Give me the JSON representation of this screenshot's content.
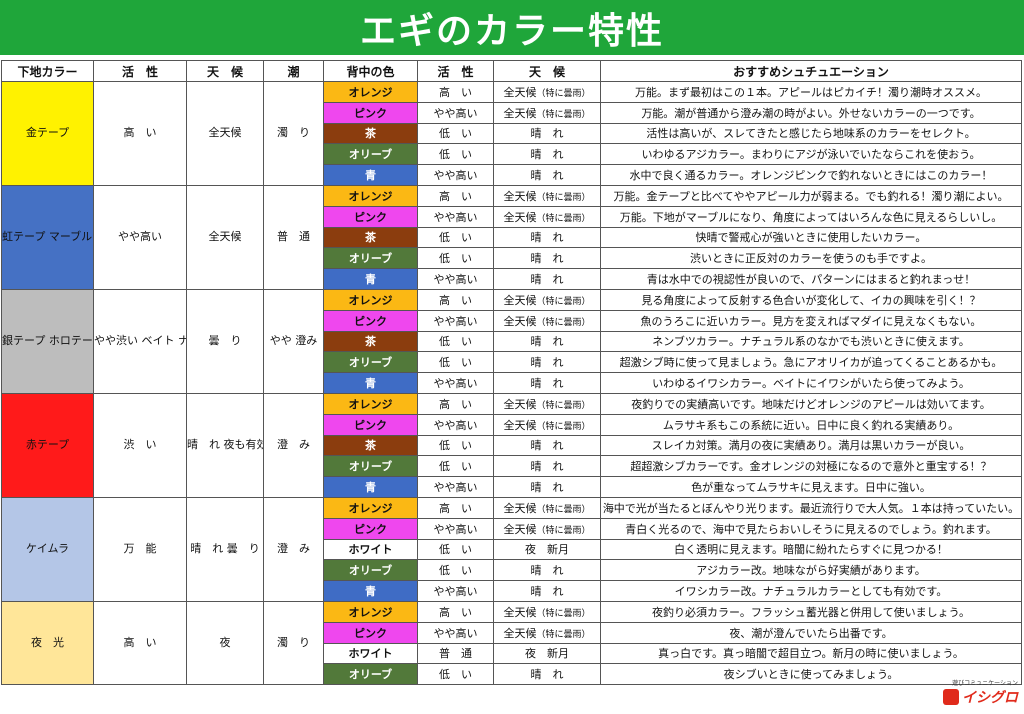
{
  "title": "エギのカラー特性",
  "headers": [
    "下地カラー",
    "活　性",
    "天　候",
    "潮",
    "背中の色",
    "活　性",
    "天　候",
    "おすすめシュチュエーション"
  ],
  "colors": {
    "gold": "#fff200",
    "rainbow": "#4571c4",
    "silver": "#bdbdbd",
    "red": "#ff1a1a",
    "keimura": "#b4c6e7",
    "luminous": "#ffe699",
    "orange": "#fbb814",
    "pink": "#ef47ee",
    "brown": "#8b3d0e",
    "olive": "#52793a",
    "blue": "#3f6cc5",
    "white": "#ffffff"
  },
  "groups": [
    {
      "base": "金テープ",
      "activity": "高　い",
      "weather": "全天候",
      "tide": "濁　り",
      "rows": [
        {
          "color": "オレンジ",
          "activity": "高　い",
          "weather_main": "全天候",
          "weather_sub": "（特に曇雨）",
          "note": "万能。まず最初はこの１本。アピールはピカイチ！濁り潮時オススメ。"
        },
        {
          "color": "ピンク",
          "activity": "やや高い",
          "weather_main": "全天候",
          "weather_sub": "（特に曇雨）",
          "note": "万能。潮が普通から澄み潮の時がよい。外せないカラーの一つです。"
        },
        {
          "color": "茶",
          "activity": "低　い",
          "weather_main": "晴　れ",
          "weather_sub": "",
          "note": "活性は高いが、スレてきたと感じたら地味系のカラーをセレクト。"
        },
        {
          "color": "オリーブ",
          "activity": "低　い",
          "weather_main": "晴　れ",
          "weather_sub": "",
          "note": "いわゆるアジカラー。まわりにアジが泳いでいたならこれを使おう。"
        },
        {
          "color": "青",
          "activity": "やや高い",
          "weather_main": "晴　れ",
          "weather_sub": "",
          "note": "水中で良く通るカラー。オレンジピンクで釣れないときにはこのカラー！"
        }
      ]
    },
    {
      "base": "虹テープ マーブル レインボー",
      "activity": "やや高い",
      "weather": "全天候",
      "tide": "普　通",
      "rows": [
        {
          "color": "オレンジ",
          "activity": "高　い",
          "weather_main": "全天候",
          "weather_sub": "（特に曇雨）",
          "note": "万能。金テープと比べてややアピール力が弱まる。でも釣れる！濁り潮によい。"
        },
        {
          "color": "ピンク",
          "activity": "やや高い",
          "weather_main": "全天候",
          "weather_sub": "（特に曇雨）",
          "note": "万能。下地がマーブルになり、角度によってはいろんな色に見えるらしいし。"
        },
        {
          "color": "茶",
          "activity": "低　い",
          "weather_main": "晴　れ",
          "weather_sub": "",
          "note": "快晴で警戒心が強いときに使用したいカラー。"
        },
        {
          "color": "オリーブ",
          "activity": "低　い",
          "weather_main": "晴　れ",
          "weather_sub": "",
          "note": "渋いときに正反対のカラーを使うのも手ですよ。"
        },
        {
          "color": "青",
          "activity": "やや高い",
          "weather_main": "晴　れ",
          "weather_sub": "",
          "note": "青は水中での視認性が良いので、パターンにはまると釣れまっせ！"
        }
      ]
    },
    {
      "base": "銀テープ ホロテープ",
      "activity": "やや渋い ベイト ナチュラル",
      "weather": "曇　り",
      "tide": "やや 澄み",
      "rows": [
        {
          "color": "オレンジ",
          "activity": "高　い",
          "weather_main": "全天候",
          "weather_sub": "（特に曇雨）",
          "note": "見る角度によって反射する色合いが変化して、イカの興味を引く！？"
        },
        {
          "color": "ピンク",
          "activity": "やや高い",
          "weather_main": "全天候",
          "weather_sub": "（特に曇雨）",
          "note": "魚のうろこに近いカラー。見方を変えればマダイに見えなくもない。"
        },
        {
          "color": "茶",
          "activity": "低　い",
          "weather_main": "晴　れ",
          "weather_sub": "",
          "note": "ネンブツカラー。ナチュラル系のなかでも渋いときに使えます。"
        },
        {
          "color": "オリーブ",
          "activity": "低　い",
          "weather_main": "晴　れ",
          "weather_sub": "",
          "note": "超激シブ時に使って見ましょう。急にアオリイカが追ってくることあるかも。"
        },
        {
          "color": "青",
          "activity": "やや高い",
          "weather_main": "晴　れ",
          "weather_sub": "",
          "note": "いわゆるイワシカラー。ベイトにイワシがいたら使ってみよう。"
        }
      ]
    },
    {
      "base": "赤テープ",
      "activity": "渋　い",
      "weather": "晴　れ 夜も有効",
      "tide": "澄　み",
      "rows": [
        {
          "color": "オレンジ",
          "activity": "高　い",
          "weather_main": "全天候",
          "weather_sub": "（特に曇雨）",
          "note": "夜釣りでの実績高いです。地味だけどオレンジのアピールは効いてます。"
        },
        {
          "color": "ピンク",
          "activity": "やや高い",
          "weather_main": "全天候",
          "weather_sub": "（特に曇雨）",
          "note": "ムラサキ系もこの系統に近い。日中に良く釣れる実績あり。"
        },
        {
          "color": "茶",
          "activity": "低　い",
          "weather_main": "晴　れ",
          "weather_sub": "",
          "note": "スレイカ対策。満月の夜に実績あり。満月は黒いカラーが良い。"
        },
        {
          "color": "オリーブ",
          "activity": "低　い",
          "weather_main": "晴　れ",
          "weather_sub": "",
          "note": "超超激シブカラーです。金オレンジの対極になるので意外と重宝する！？"
        },
        {
          "color": "青",
          "activity": "やや高い",
          "weather_main": "晴　れ",
          "weather_sub": "",
          "note": "色が重なってムラサキに見えます。日中に強い。"
        }
      ]
    },
    {
      "base": "ケイムラ",
      "activity": "万　能",
      "weather": "晴　れ 曇　り",
      "tide": "澄　み",
      "rows": [
        {
          "color": "オレンジ",
          "activity": "高　い",
          "weather_main": "全天候",
          "weather_sub": "（特に曇雨）",
          "note": "海中で光が当たるとぼんやり光ります。最近流行りで大人気。１本は持っていたい。"
        },
        {
          "color": "ピンク",
          "activity": "やや高い",
          "weather_main": "全天候",
          "weather_sub": "（特に曇雨）",
          "note": "青白く光るので、海中で見たらおいしそうに見えるのでしょう。釣れます。"
        },
        {
          "color": "ホワイト",
          "activity": "低　い",
          "weather_main": "夜　新月",
          "weather_sub": "",
          "note": "白く透明に見えます。暗闇に紛れたらすぐに見つかる！"
        },
        {
          "color": "オリーブ",
          "activity": "低　い",
          "weather_main": "晴　れ",
          "weather_sub": "",
          "note": "アジカラー改。地味ながら好実績があります。"
        },
        {
          "color": "青",
          "activity": "やや高い",
          "weather_main": "晴　れ",
          "weather_sub": "",
          "note": "イワシカラー改。ナチュラルカラーとしても有効です。"
        }
      ]
    },
    {
      "base": "夜　光",
      "activity": "高　い",
      "weather": "夜",
      "tide": "濁　り",
      "rows": [
        {
          "color": "オレンジ",
          "activity": "高　い",
          "weather_main": "全天候",
          "weather_sub": "（特に曇雨）",
          "note": "夜釣り必須カラー。フラッシュ蓄光器と併用して使いましょう。"
        },
        {
          "color": "ピンク",
          "activity": "やや高い",
          "weather_main": "全天候",
          "weather_sub": "（特に曇雨）",
          "note": "夜、潮が澄んでいたら出番です。"
        },
        {
          "color": "ホワイト",
          "activity": "普　通",
          "weather_main": "夜　新月",
          "weather_sub": "",
          "note": "真っ白です。真っ暗闇で超目立つ。新月の時に使いましょう。"
        },
        {
          "color": "オリーブ",
          "activity": "低　い",
          "weather_main": "晴　れ",
          "weather_sub": "",
          "note": "夜シブいときに使ってみましょう。"
        }
      ]
    }
  ],
  "logo": {
    "tagline": "遊びコミュニケーション",
    "name": "イシグロ"
  }
}
